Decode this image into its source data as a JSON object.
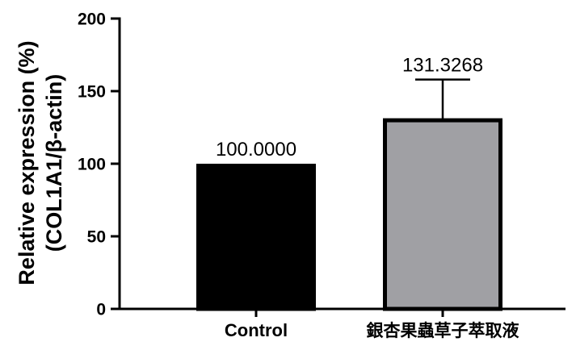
{
  "chart_data": {
    "type": "bar",
    "categories": [
      "Control",
      "銀杏果蟲草子萃取液"
    ],
    "values": [
      100.0,
      131.3268
    ],
    "value_labels": [
      "100.0000",
      "131.3268"
    ],
    "error_upper": [
      null,
      158
    ],
    "bar_colors": [
      "#000000",
      "#a0a0a4"
    ],
    "bar_edge_color": "#000000",
    "ylabel_line1": "Relative expression (%)",
    "ylabel_line2": "(COL1A1/β-actin)",
    "ylim": [
      0,
      200
    ],
    "yticks": [
      0,
      50,
      100,
      150,
      200
    ],
    "ytick_labels": [
      "0",
      "50",
      "100",
      "150",
      "200"
    ],
    "grid": false,
    "legend": "none"
  }
}
